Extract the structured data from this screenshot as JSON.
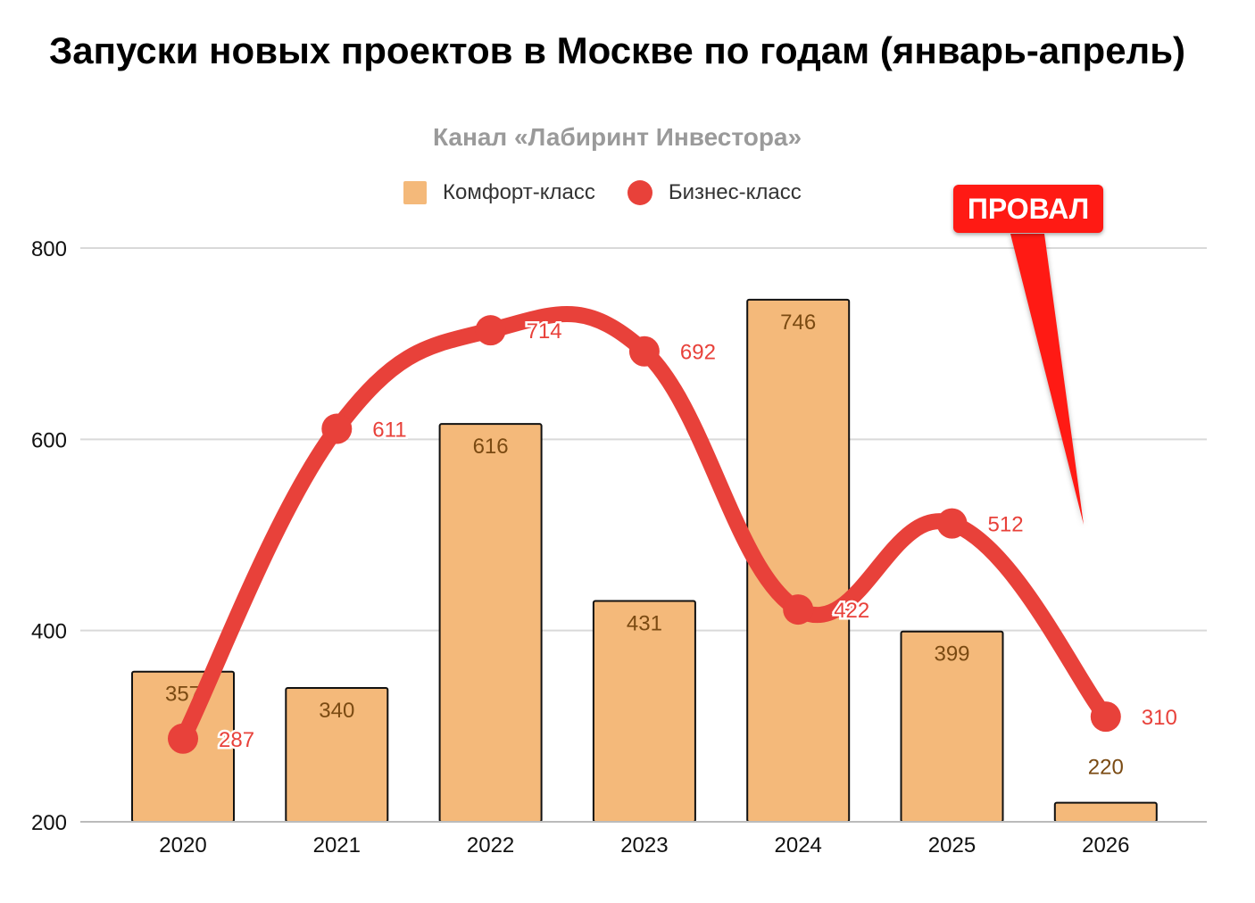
{
  "title": "Запуски новых проектов в Москве по годам (январь-апрель)",
  "subtitle": "Канал «Лабиринт Инвестора»",
  "annotation": "ПРОВАЛ",
  "colors": {
    "bar": "#f4b97a",
    "line": "#e8413a",
    "badge": "#ff1a14"
  },
  "chart_data": {
    "type": "bar",
    "categories": [
      "2020",
      "2021",
      "2022",
      "2023",
      "2024",
      "2025",
      "2026"
    ],
    "series": [
      {
        "name": "Комфорт-класс",
        "type": "bar",
        "values": [
          357,
          340,
          616,
          431,
          746,
          399,
          220
        ]
      },
      {
        "name": "Бизнес-класс",
        "type": "line",
        "smooth": true,
        "values": [
          287,
          611,
          714,
          692,
          422,
          512,
          310
        ]
      }
    ],
    "ylim": [
      200,
      800
    ],
    "yticks": [
      "200",
      "400",
      "600",
      "800"
    ],
    "grid": true,
    "legend": "top"
  }
}
